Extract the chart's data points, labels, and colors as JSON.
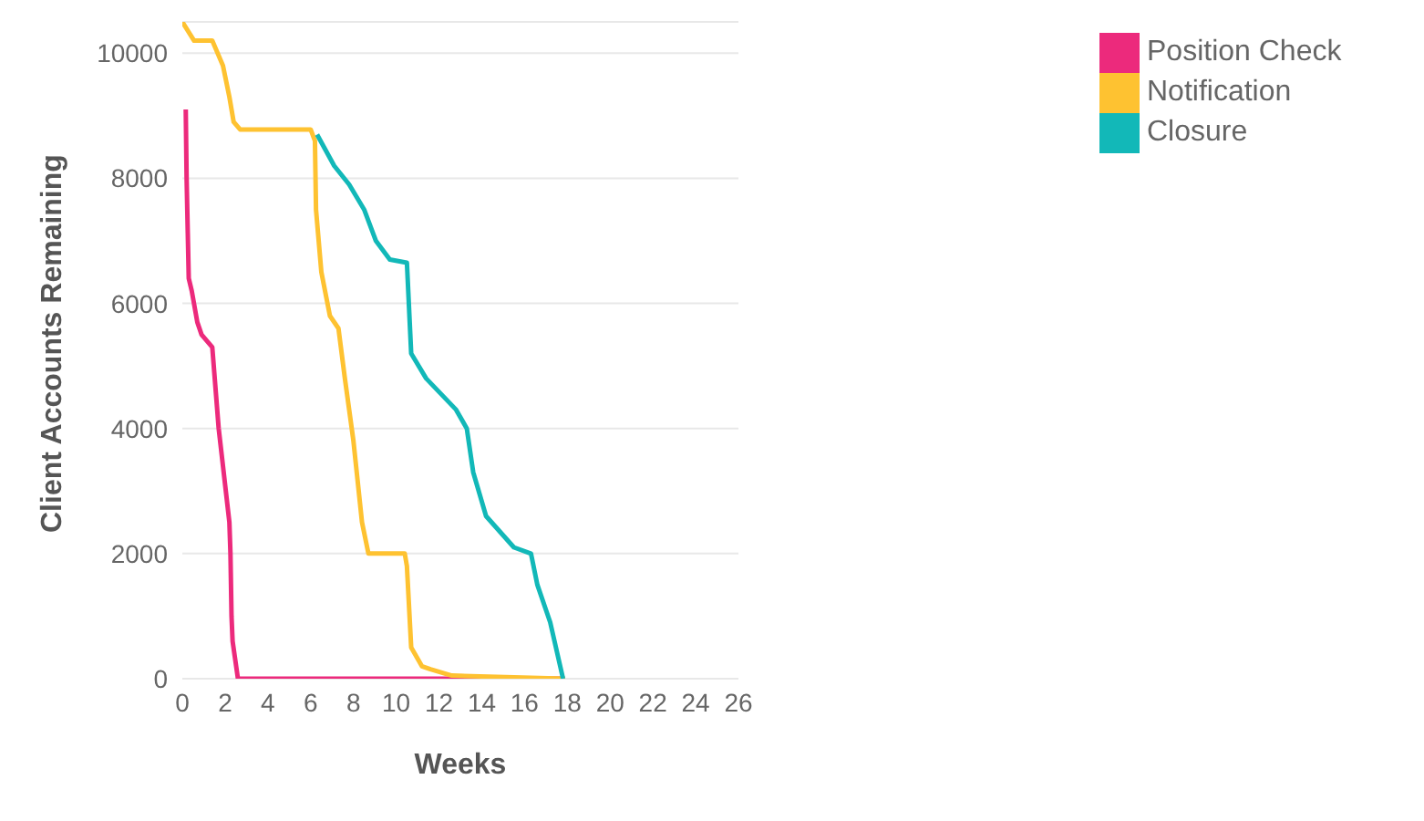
{
  "chart_data": {
    "type": "line",
    "xlabel": "Weeks",
    "ylabel": "Client Accounts Remaining",
    "xlim": [
      0,
      26
    ],
    "xticks": [
      0,
      2,
      4,
      6,
      8,
      10,
      12,
      14,
      16,
      18,
      20,
      22,
      24,
      26
    ],
    "ylim": [
      0,
      10500
    ],
    "yticks": [
      0,
      2000,
      4000,
      6000,
      8000,
      10000
    ],
    "grid": "y",
    "legend": "top right",
    "marker": "none",
    "line_style": "solid",
    "series": [
      {
        "name": "Position Check",
        "color": "#ec2a7c",
        "x": [
          0.16,
          0.2,
          0.3,
          0.44,
          0.7,
          0.9,
          1.4,
          1.7,
          2.0,
          2.2,
          2.25,
          2.3,
          2.35,
          2.6,
          17.8
        ],
        "values": [
          9100,
          8000,
          6400,
          6200,
          5700,
          5500,
          5300,
          4000,
          3100,
          2500,
          2000,
          1000,
          600,
          0,
          0
        ]
      },
      {
        "name": "Notification",
        "color": "#fec231",
        "x": [
          0,
          0.55,
          1.4,
          1.9,
          2.2,
          2.4,
          2.7,
          6.0,
          6.2,
          6.25,
          6.5,
          6.9,
          7.3,
          7.6,
          8.0,
          8.4,
          8.7,
          10.4,
          10.5,
          10.7,
          11.2,
          11.6,
          12.6,
          17.9
        ],
        "values": [
          10500,
          10200,
          10200,
          9800,
          9300,
          8900,
          8780,
          8780,
          8600,
          7500,
          6500,
          5800,
          5600,
          4800,
          3800,
          2500,
          2000,
          2000,
          1800,
          500,
          200,
          150,
          50,
          0
        ]
      },
      {
        "name": "Closure",
        "color": "#12b8b8",
        "x": [
          6.3,
          7.1,
          7.8,
          8.5,
          9.05,
          9.7,
          10.5,
          10.7,
          11.4,
          12.8,
          13.3,
          13.6,
          14.2,
          15.5,
          16.3,
          16.6,
          17.2,
          17.8
        ],
        "values": [
          8700,
          8200,
          7900,
          7500,
          7000,
          6700,
          6650,
          5200,
          4800,
          4300,
          4000,
          3300,
          2600,
          2100,
          2000,
          1500,
          900,
          0
        ]
      }
    ]
  }
}
